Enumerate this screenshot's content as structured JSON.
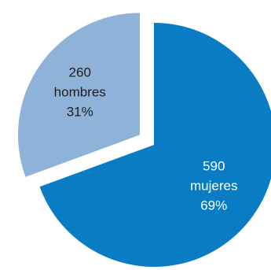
{
  "chart_data": {
    "type": "pie",
    "title": "",
    "exploded": "hombres",
    "slices": [
      {
        "label": "mujeres",
        "value": 590,
        "percent": "69%",
        "color": "#0A7CC3",
        "text_color": "#FFFFFF"
      },
      {
        "label": "hombres",
        "value": 260,
        "percent": "31%",
        "color": "#8FB2D8",
        "text_color": "#1F1F1F"
      }
    ]
  }
}
